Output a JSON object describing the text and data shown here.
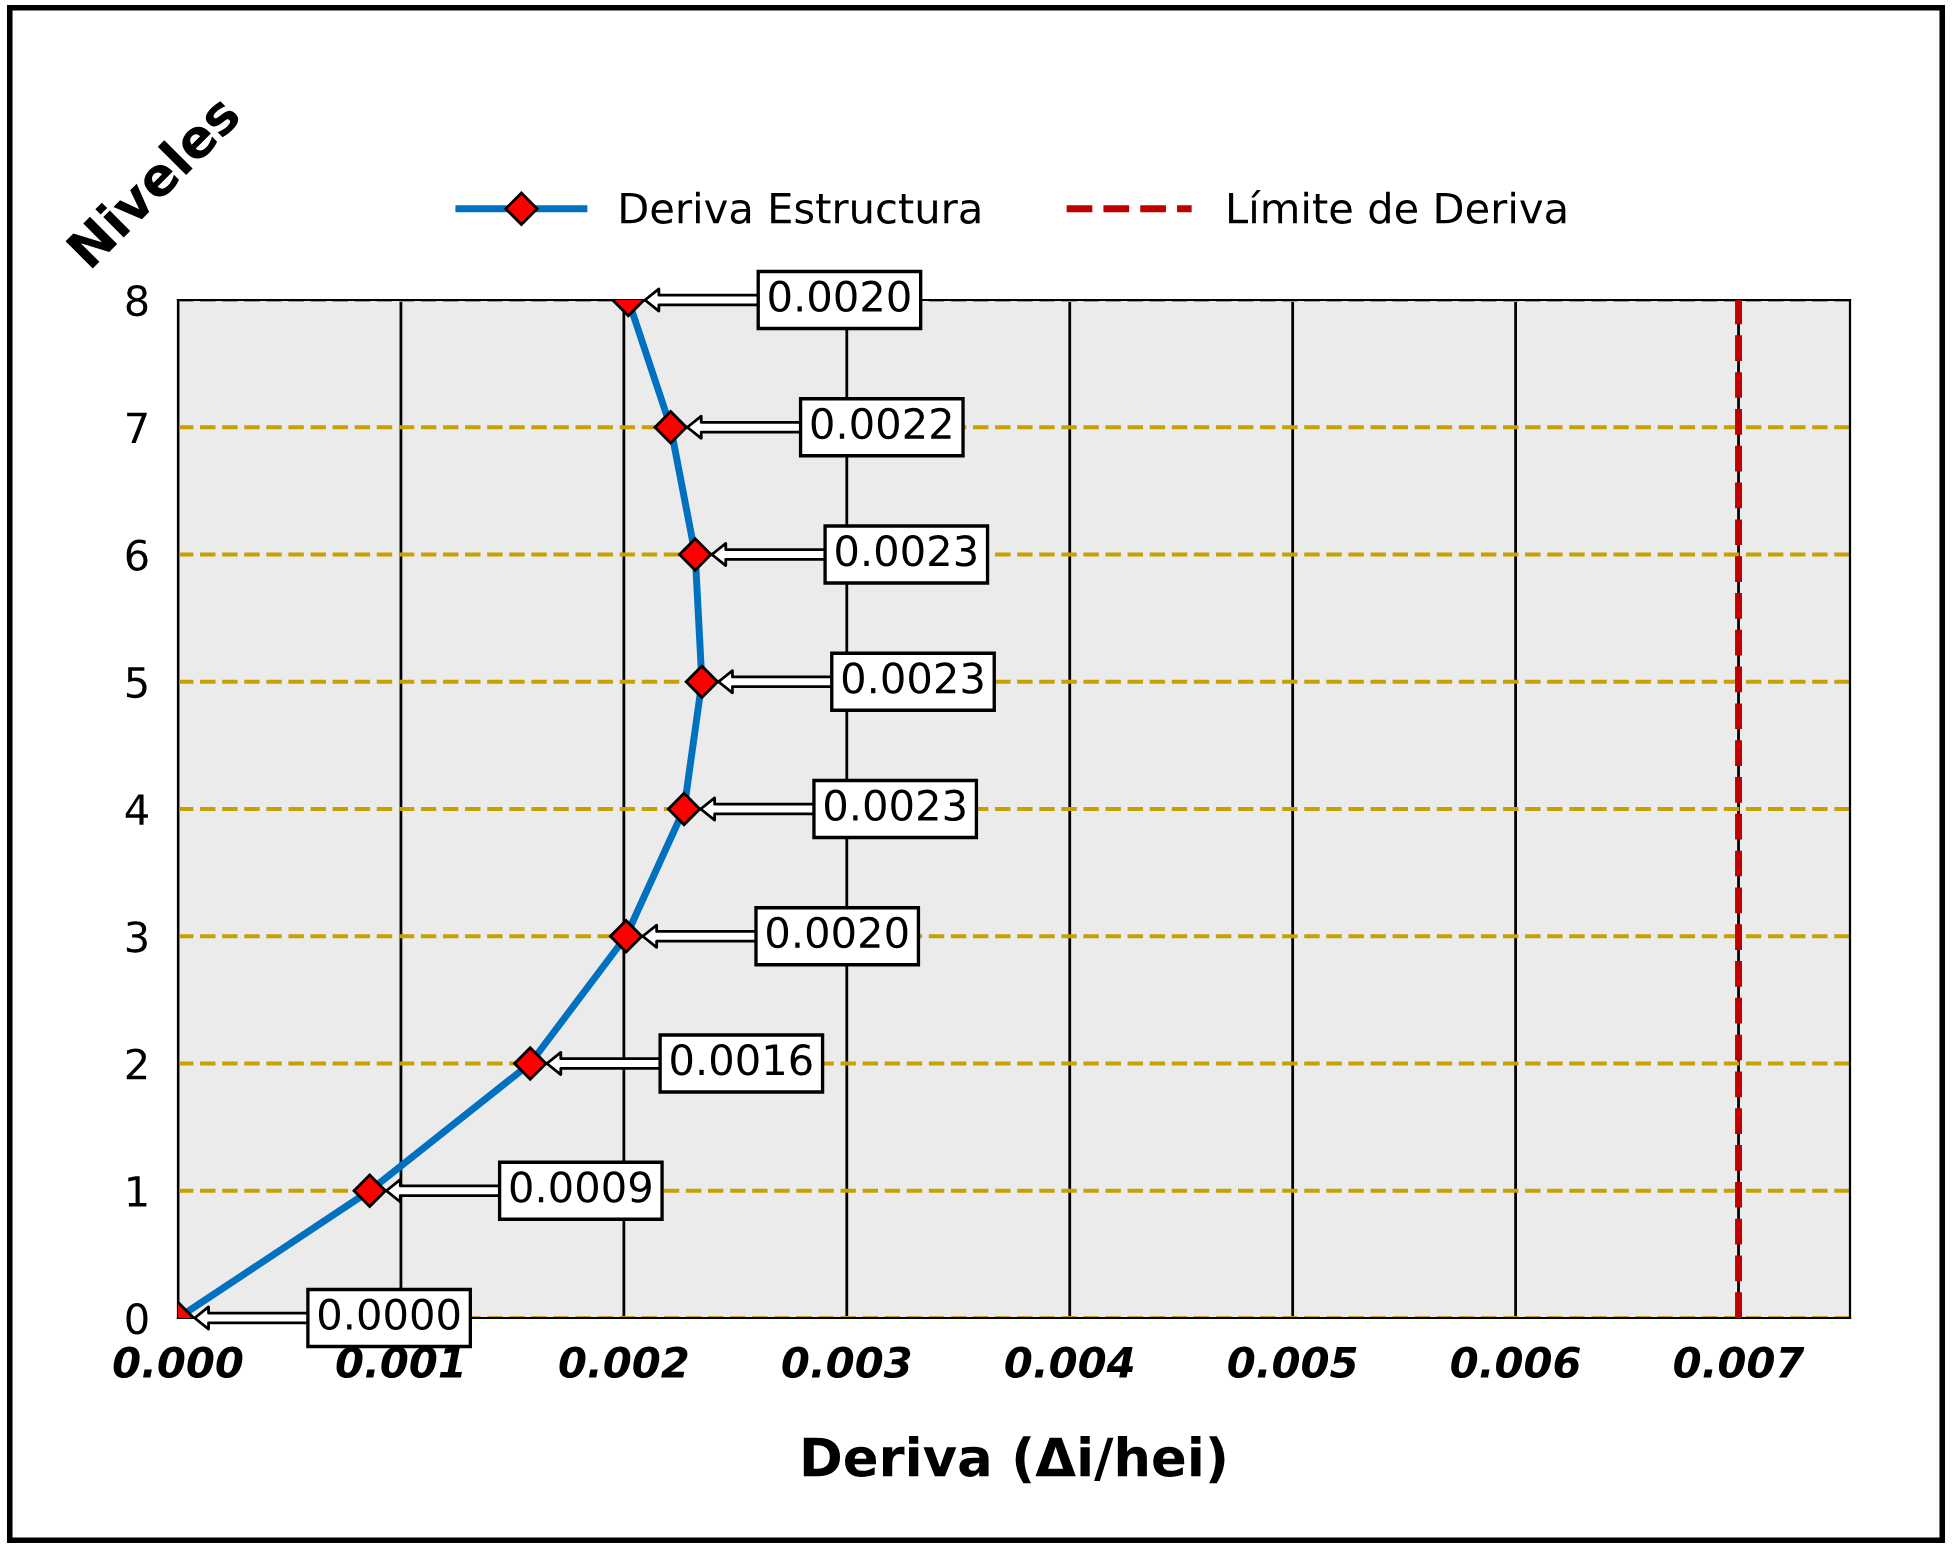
{
  "chart_data": {
    "type": "line",
    "orientation": "horizontal",
    "xlabel": "Deriva (Δi/hei)",
    "ylabel": "Niveles",
    "categories": [
      "8",
      "7",
      "6",
      "5",
      "4",
      "3",
      "2",
      "1",
      "0"
    ],
    "series": [
      {
        "name": "Deriva Estructura",
        "color": "#0070c0",
        "values": [
          0.00202,
          0.00221,
          0.00232,
          0.00235,
          0.00227,
          0.00201,
          0.00158,
          0.00086,
          0.0
        ],
        "value_labels": [
          "0.0020",
          "0.0022",
          "0.0023",
          "0.0023",
          "0.0023",
          "0.0020",
          "0.0016",
          "0.0009",
          "0.0000"
        ]
      }
    ],
    "ref_lines": [
      {
        "axis": "x",
        "value": 0.007,
        "label": "Límite de Deriva",
        "color": "#c00000",
        "line_style": "dashed"
      }
    ],
    "xlim": [
      0,
      0.0075
    ],
    "xticks": [
      {
        "value": 0,
        "label": "0.000"
      },
      0.001,
      0.002,
      0.003,
      0.004,
      0.005,
      0.006,
      0.007
    ],
    "grid": true,
    "legend": "top",
    "marker": "diamond",
    "line_style": "solid"
  }
}
